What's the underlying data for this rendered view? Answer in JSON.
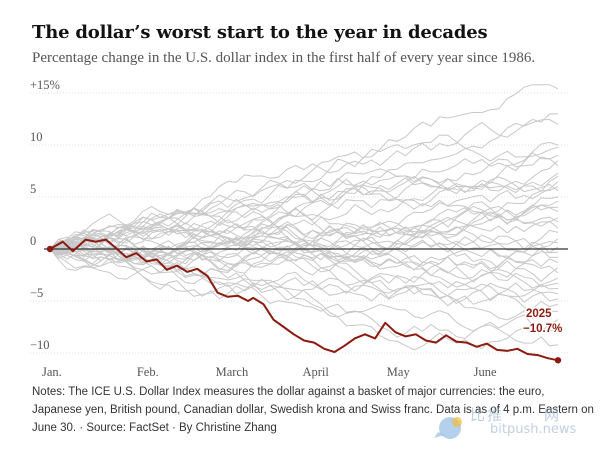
{
  "header": {
    "title": "The dollar’s worst start to the year in decades",
    "subtitle": "Percentage change in the U.S. dollar index in the first half of every year since 1986."
  },
  "notes": {
    "line1": "Notes: The ICE U.S. Dollar Index measures the dollar against a basket of major currencies: the euro,",
    "line2": "Japanese yen, British pound, Canadian dollar, Swedish krona and Swiss franc. Data is as of 4 p.m. Eastern on",
    "line3": "June 30. · Source: FactSet · By Christine Zhang"
  },
  "watermark": {
    "text1": "比推",
    "text2": "bitpush.news",
    "text3": "网"
  },
  "colors": {
    "highlight": "#8b1a10",
    "background_lines": "#c8c8c8",
    "zero_line": "#333333"
  },
  "chart_data": {
    "type": "line",
    "title": "The dollar’s worst start to the year in decades",
    "xlabel": "",
    "ylabel": "",
    "x_domain": [
      "Jan. 1",
      "June 30"
    ],
    "x_tick_labels": [
      "Jan.",
      "Feb.",
      "March",
      "April",
      "May",
      "June"
    ],
    "y_ticks": [
      {
        "value": 15,
        "label": "+15%"
      },
      {
        "value": 10,
        "label": "10"
      },
      {
        "value": 5,
        "label": "5"
      },
      {
        "value": 0,
        "label": "0"
      },
      {
        "value": -5,
        "label": "−5"
      },
      {
        "value": -10,
        "label": "−10"
      }
    ],
    "ylim": [
      -10.8,
      15
    ],
    "grid": true,
    "highlight_series": {
      "name": "2025",
      "label": "2025",
      "value_label": "−10.7%",
      "end_value": -10.7,
      "x": [
        0,
        0.025,
        0.045,
        0.07,
        0.09,
        0.11,
        0.13,
        0.15,
        0.17,
        0.19,
        0.21,
        0.23,
        0.25,
        0.27,
        0.29,
        0.31,
        0.33,
        0.35,
        0.37,
        0.39,
        0.4,
        0.42,
        0.44,
        0.46,
        0.48,
        0.5,
        0.52,
        0.54,
        0.56,
        0.58,
        0.6,
        0.62,
        0.64,
        0.66,
        0.68,
        0.7,
        0.72,
        0.74,
        0.76,
        0.78,
        0.8,
        0.82,
        0.84,
        0.86,
        0.88,
        0.9,
        0.92,
        0.94,
        0.96,
        0.98,
        1.0
      ],
      "y": [
        0,
        0.7,
        -0.2,
        0.9,
        0.7,
        0.9,
        0.1,
        -0.8,
        -0.4,
        -1.2,
        -1.0,
        -2.0,
        -1.6,
        -2.2,
        -1.9,
        -2.6,
        -4.2,
        -4.6,
        -4.5,
        -5.0,
        -4.7,
        -5.3,
        -6.8,
        -7.5,
        -8.2,
        -8.8,
        -9.0,
        -9.6,
        -9.9,
        -9.3,
        -8.6,
        -8.2,
        -8.6,
        -7.1,
        -8.0,
        -8.4,
        -8.2,
        -8.8,
        -9.0,
        -8.3,
        -8.9,
        -9.0,
        -9.4,
        -9.1,
        -9.7,
        -9.8,
        -9.6,
        -10.1,
        -10.2,
        -10.5,
        -10.7
      ]
    },
    "background_series_count": 39,
    "background_series_end_values": [
      15.4,
      13.0,
      12.0,
      10.0,
      9.8,
      9.0,
      8.5,
      8.0,
      7.3,
      7.0,
      6.5,
      6.0,
      5.6,
      5.0,
      4.6,
      4.0,
      3.6,
      3.0,
      2.6,
      2.0,
      1.6,
      1.0,
      0.6,
      0.2,
      -0.3,
      -0.8,
      -1.3,
      -1.8,
      -2.3,
      -2.8,
      -3.3,
      -3.8,
      -4.3,
      -4.8,
      -5.3,
      -6.0,
      -6.8,
      -7.5,
      -9.2
    ]
  }
}
